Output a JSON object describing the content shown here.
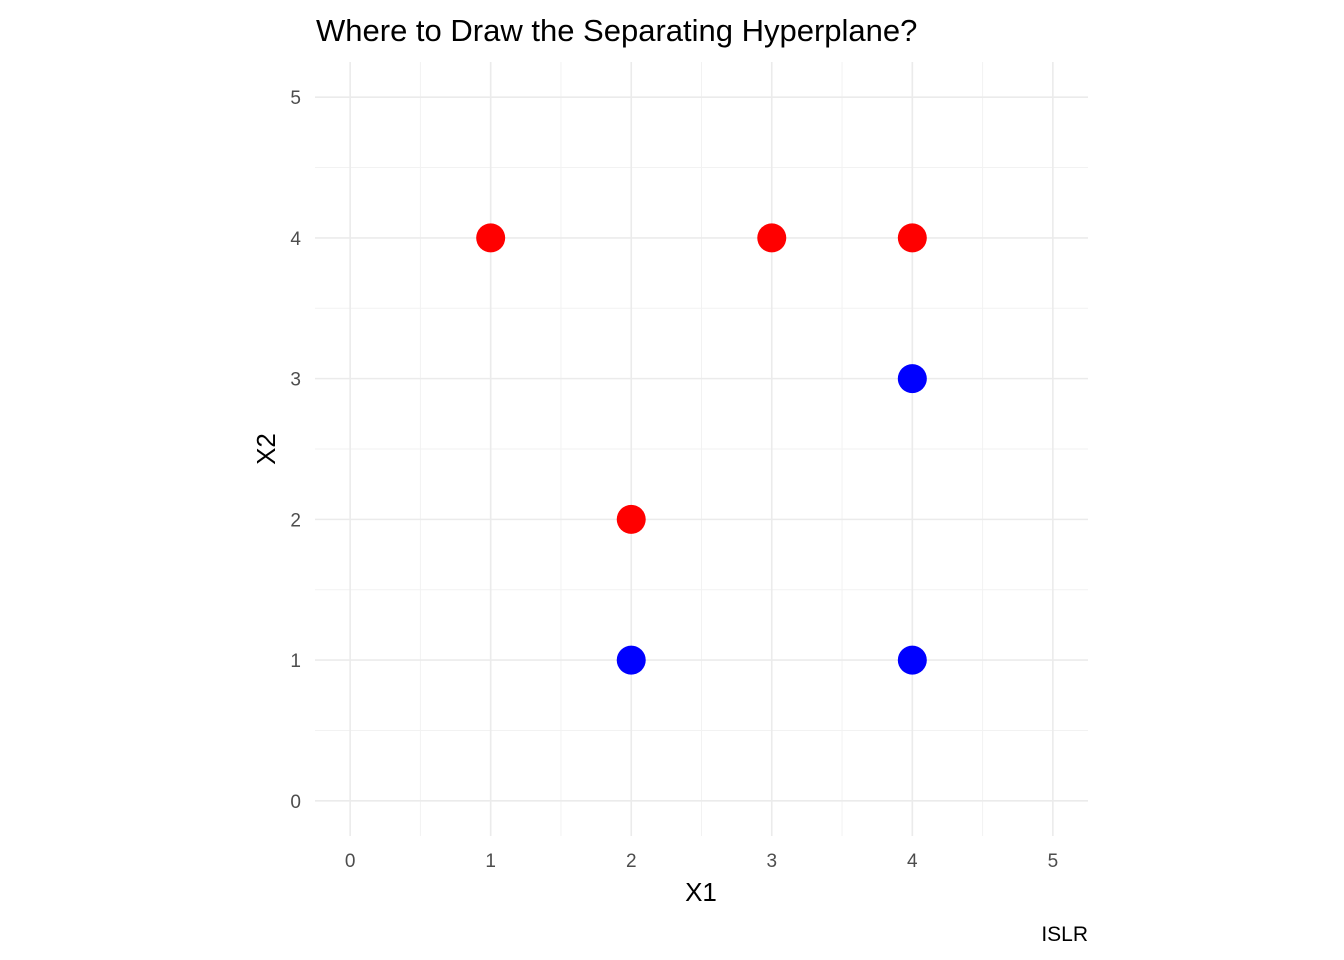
{
  "chart_data": {
    "type": "scatter",
    "title": "Where to Draw the Separating Hyperplane?",
    "xlabel": "X1",
    "ylabel": "X2",
    "caption": "ISLR",
    "xlim": [
      -0.25,
      5.25
    ],
    "ylim": [
      -0.25,
      5.25
    ],
    "x_ticks": [
      0,
      1,
      2,
      3,
      4,
      5
    ],
    "y_ticks": [
      0,
      1,
      2,
      3,
      4,
      5
    ],
    "x_minor_ticks": [
      0.5,
      1.5,
      2.5,
      3.5,
      4.5
    ],
    "y_minor_ticks": [
      0.5,
      1.5,
      2.5,
      3.5,
      4.5
    ],
    "grid": true,
    "legend": "none",
    "points": [
      {
        "x": 1,
        "y": 4,
        "color": "#ff0000"
      },
      {
        "x": 3,
        "y": 4,
        "color": "#ff0000"
      },
      {
        "x": 4,
        "y": 4,
        "color": "#ff0000"
      },
      {
        "x": 2,
        "y": 2,
        "color": "#ff0000"
      },
      {
        "x": 4,
        "y": 3,
        "color": "#0000ff"
      },
      {
        "x": 2,
        "y": 1,
        "color": "#0000ff"
      },
      {
        "x": 4,
        "y": 1,
        "color": "#0000ff"
      }
    ]
  }
}
